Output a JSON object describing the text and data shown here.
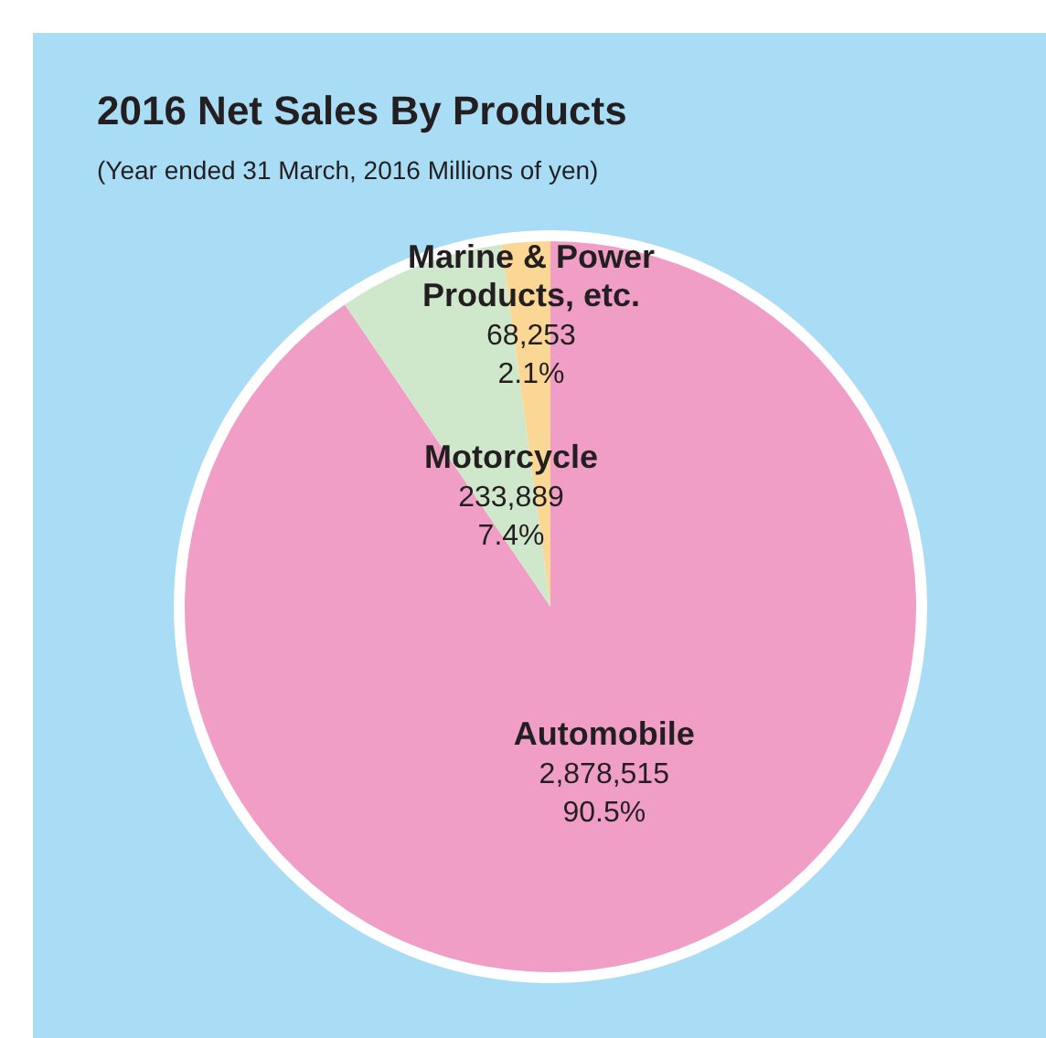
{
  "chart_data": {
    "type": "pie",
    "title": "2016 Net Sales By Products",
    "subtitle": "(Year ended 31 March, 2016 Millions of yen)",
    "categories": [
      "Automobile",
      "Motorcycle",
      "Marine & Power Products, etc."
    ],
    "values": [
      2878515,
      233889,
      68253
    ],
    "colors": [
      "#f09ec6",
      "#cfe8cb",
      "#fbd796"
    ],
    "value_labels": [
      "2,878,515\n90.5%",
      "233,889\n7.4%",
      "68,253\n2.1%"
    ]
  }
}
